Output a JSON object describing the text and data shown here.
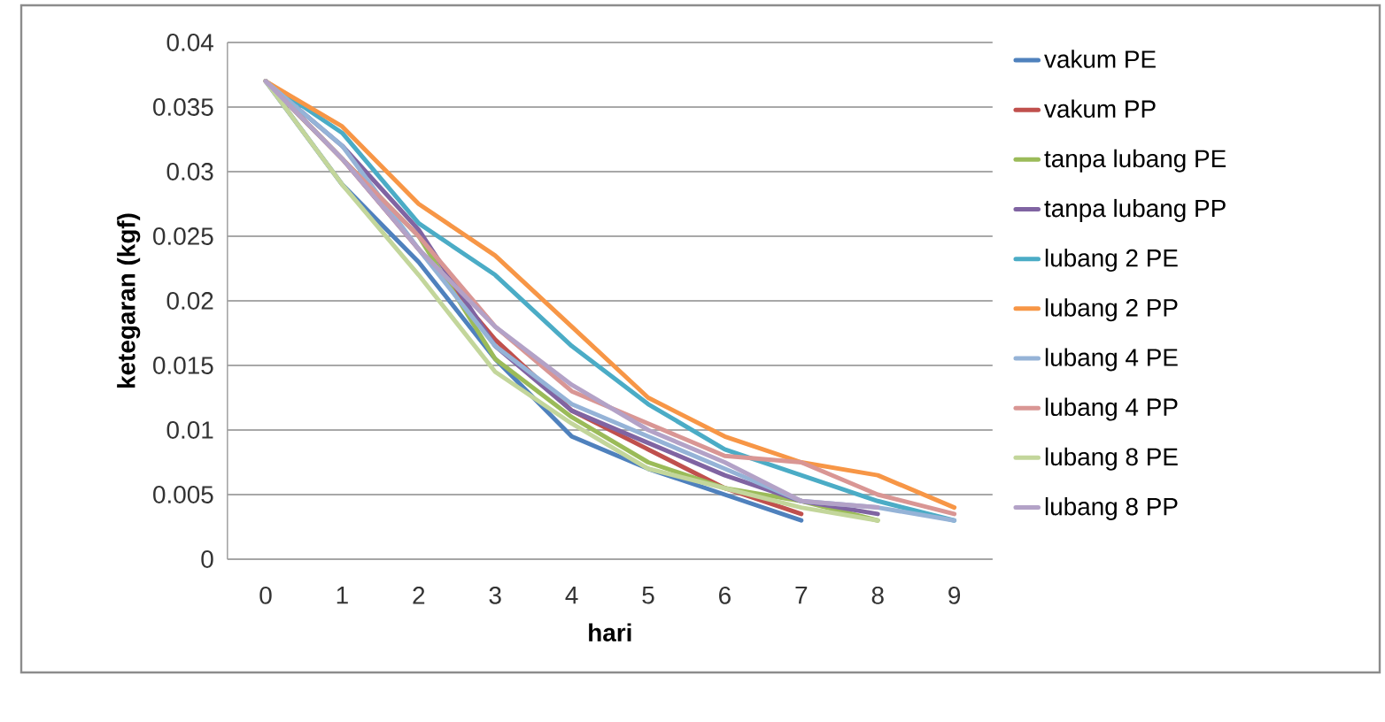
{
  "chart_data": {
    "type": "line",
    "xlabel": "hari",
    "ylabel": "ketegaran (kgf)",
    "categories": [
      "0",
      "1",
      "2",
      "3",
      "4",
      "5",
      "6",
      "7",
      "8",
      "9"
    ],
    "ylim": [
      0,
      0.04
    ],
    "yticks": [
      0,
      0.005,
      0.01,
      0.015,
      0.02,
      0.025,
      0.03,
      0.035,
      0.04
    ],
    "grid": "y",
    "legend": "right",
    "marker": "none",
    "line_style": "solid",
    "series": [
      {
        "name": "vakum PE",
        "color": "#4f81bd",
        "values": [
          0.037,
          0.029,
          0.023,
          0.0155,
          0.0095,
          0.007,
          0.005,
          0.003,
          null,
          null
        ]
      },
      {
        "name": "vakum PP",
        "color": "#c0504d",
        "values": [
          0.037,
          0.031,
          0.024,
          0.017,
          0.0115,
          0.0085,
          0.0055,
          0.0035,
          null,
          null
        ]
      },
      {
        "name": "tanpa lubang PE",
        "color": "#9bbb59",
        "values": [
          0.037,
          0.031,
          0.025,
          0.0155,
          0.011,
          0.0075,
          0.0055,
          0.0045,
          0.003,
          null
        ]
      },
      {
        "name": "tanpa lubang PP",
        "color": "#8064a2",
        "values": [
          0.037,
          0.032,
          0.0255,
          0.0165,
          0.0115,
          0.009,
          0.0065,
          0.0045,
          0.0035,
          null
        ]
      },
      {
        "name": "lubang 2 PE",
        "color": "#4bacc6",
        "values": [
          0.037,
          0.033,
          0.026,
          0.022,
          0.0165,
          0.012,
          0.0085,
          0.0065,
          0.0045,
          0.003
        ]
      },
      {
        "name": "lubang 2 PP",
        "color": "#f79646",
        "values": [
          0.037,
          0.0335,
          0.0275,
          0.0235,
          0.018,
          0.0125,
          0.0095,
          0.0075,
          0.0065,
          0.004
        ]
      },
      {
        "name": "lubang 4 PE",
        "color": "#95b3d7",
        "values": [
          0.037,
          0.032,
          0.024,
          0.0165,
          0.012,
          0.0095,
          0.007,
          0.0045,
          0.004,
          0.003
        ]
      },
      {
        "name": "lubang 4 PP",
        "color": "#d99694",
        "values": [
          0.037,
          0.031,
          0.025,
          0.018,
          0.013,
          0.0105,
          0.008,
          0.0075,
          0.005,
          0.0035
        ]
      },
      {
        "name": "lubang 8 PE",
        "color": "#c3d69b",
        "values": [
          0.037,
          0.029,
          0.022,
          0.0145,
          0.0105,
          0.007,
          0.0055,
          0.004,
          0.003,
          null
        ]
      },
      {
        "name": "lubang 8 PP",
        "color": "#b3a2c7",
        "values": [
          0.037,
          0.031,
          0.024,
          0.018,
          0.0135,
          0.01,
          0.0075,
          0.0045,
          0.004,
          null
        ]
      }
    ]
  }
}
